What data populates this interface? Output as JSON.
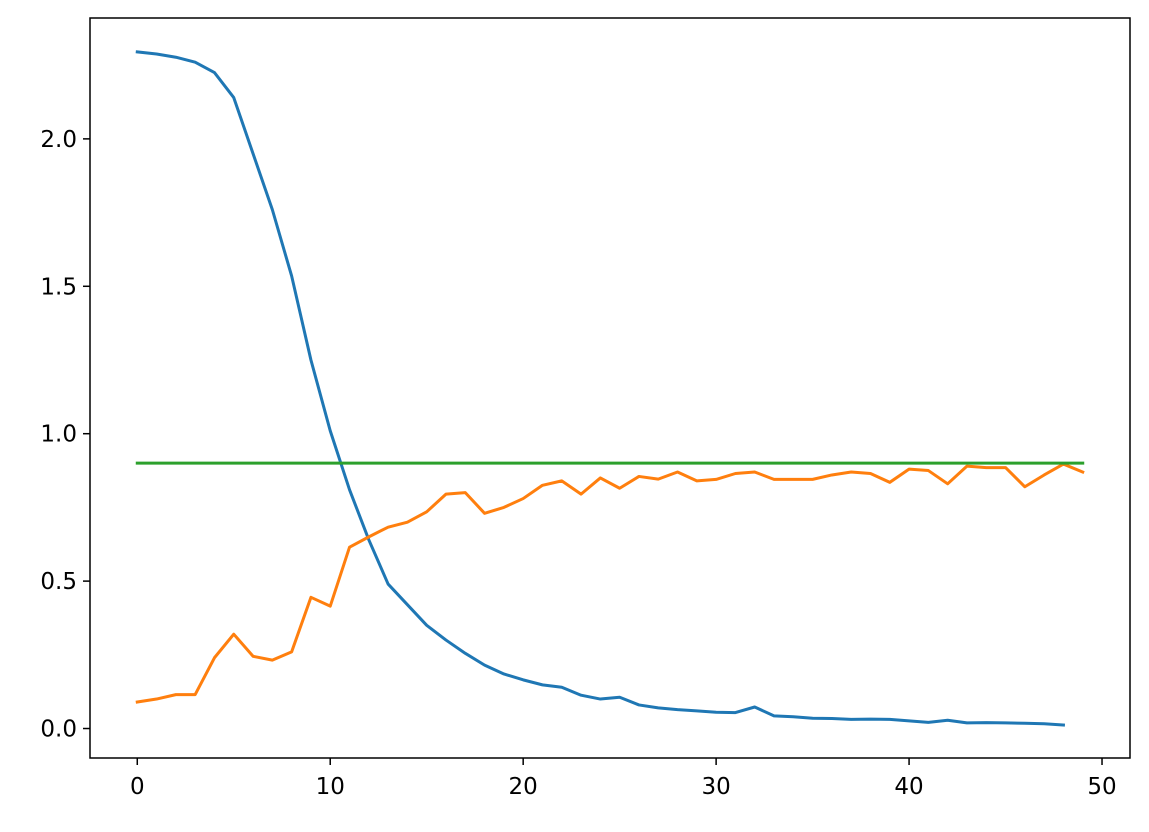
{
  "chart_data": {
    "type": "line",
    "title": "",
    "xlabel": "",
    "ylabel": "",
    "xlim": [
      -2.45,
      51.45
    ],
    "ylim": [
      -0.1,
      2.41
    ],
    "xticks": [
      0,
      10,
      20,
      30,
      40,
      50
    ],
    "xtick_labels": [
      "0",
      "10",
      "20",
      "30",
      "40",
      "50"
    ],
    "yticks": [
      0.0,
      0.5,
      1.0,
      1.5,
      2.0
    ],
    "ytick_labels": [
      "0.0",
      "0.5",
      "1.0",
      "1.5",
      "2.0"
    ],
    "grid": false,
    "legend": "none",
    "series": [
      {
        "color": "#1f77b4",
        "x": [
          0,
          1,
          2,
          3,
          4,
          5,
          6,
          7,
          8,
          9,
          10,
          11,
          12,
          13,
          14,
          15,
          16,
          17,
          18,
          19,
          20,
          21,
          22,
          23,
          24,
          25,
          26,
          27,
          28,
          29,
          30,
          31,
          32,
          33,
          34,
          35,
          36,
          37,
          38,
          39,
          40,
          41,
          42,
          43,
          44,
          45,
          46,
          47,
          48
        ],
        "y": [
          2.295,
          2.288,
          2.277,
          2.26,
          2.225,
          2.14,
          1.95,
          1.76,
          1.535,
          1.25,
          1.01,
          0.81,
          0.64,
          0.49,
          0.42,
          0.35,
          0.3,
          0.255,
          0.215,
          0.185,
          0.165,
          0.148,
          0.14,
          0.113,
          0.1,
          0.106,
          0.08,
          0.07,
          0.064,
          0.06,
          0.055,
          0.054,
          0.073,
          0.043,
          0.04,
          0.035,
          0.034,
          0.031,
          0.032,
          0.031,
          0.026,
          0.021,
          0.028,
          0.019,
          0.02,
          0.019,
          0.018,
          0.016,
          0.012
        ]
      },
      {
        "color": "#ff7f0e",
        "x": [
          0,
          1,
          2,
          3,
          4,
          5,
          6,
          7,
          8,
          9,
          10,
          11,
          12,
          13,
          14,
          15,
          16,
          17,
          18,
          19,
          20,
          21,
          22,
          23,
          24,
          25,
          26,
          27,
          28,
          29,
          30,
          31,
          32,
          33,
          34,
          35,
          36,
          37,
          38,
          39,
          40,
          41,
          42,
          43,
          44,
          45,
          46,
          47,
          48,
          49
        ],
        "y": [
          0.09,
          0.1,
          0.115,
          0.115,
          0.24,
          0.32,
          0.245,
          0.232,
          0.26,
          0.445,
          0.415,
          0.615,
          0.65,
          0.683,
          0.7,
          0.735,
          0.795,
          0.8,
          0.73,
          0.75,
          0.78,
          0.825,
          0.84,
          0.795,
          0.85,
          0.815,
          0.855,
          0.846,
          0.87,
          0.84,
          0.845,
          0.865,
          0.87,
          0.845,
          0.845,
          0.845,
          0.86,
          0.87,
          0.865,
          0.835,
          0.88,
          0.875,
          0.83,
          0.89,
          0.885,
          0.885,
          0.82,
          0.86,
          0.897,
          0.87
        ]
      },
      {
        "color": "#2ca02c",
        "x": [
          0,
          49
        ],
        "y": [
          0.9,
          0.9
        ]
      }
    ]
  }
}
